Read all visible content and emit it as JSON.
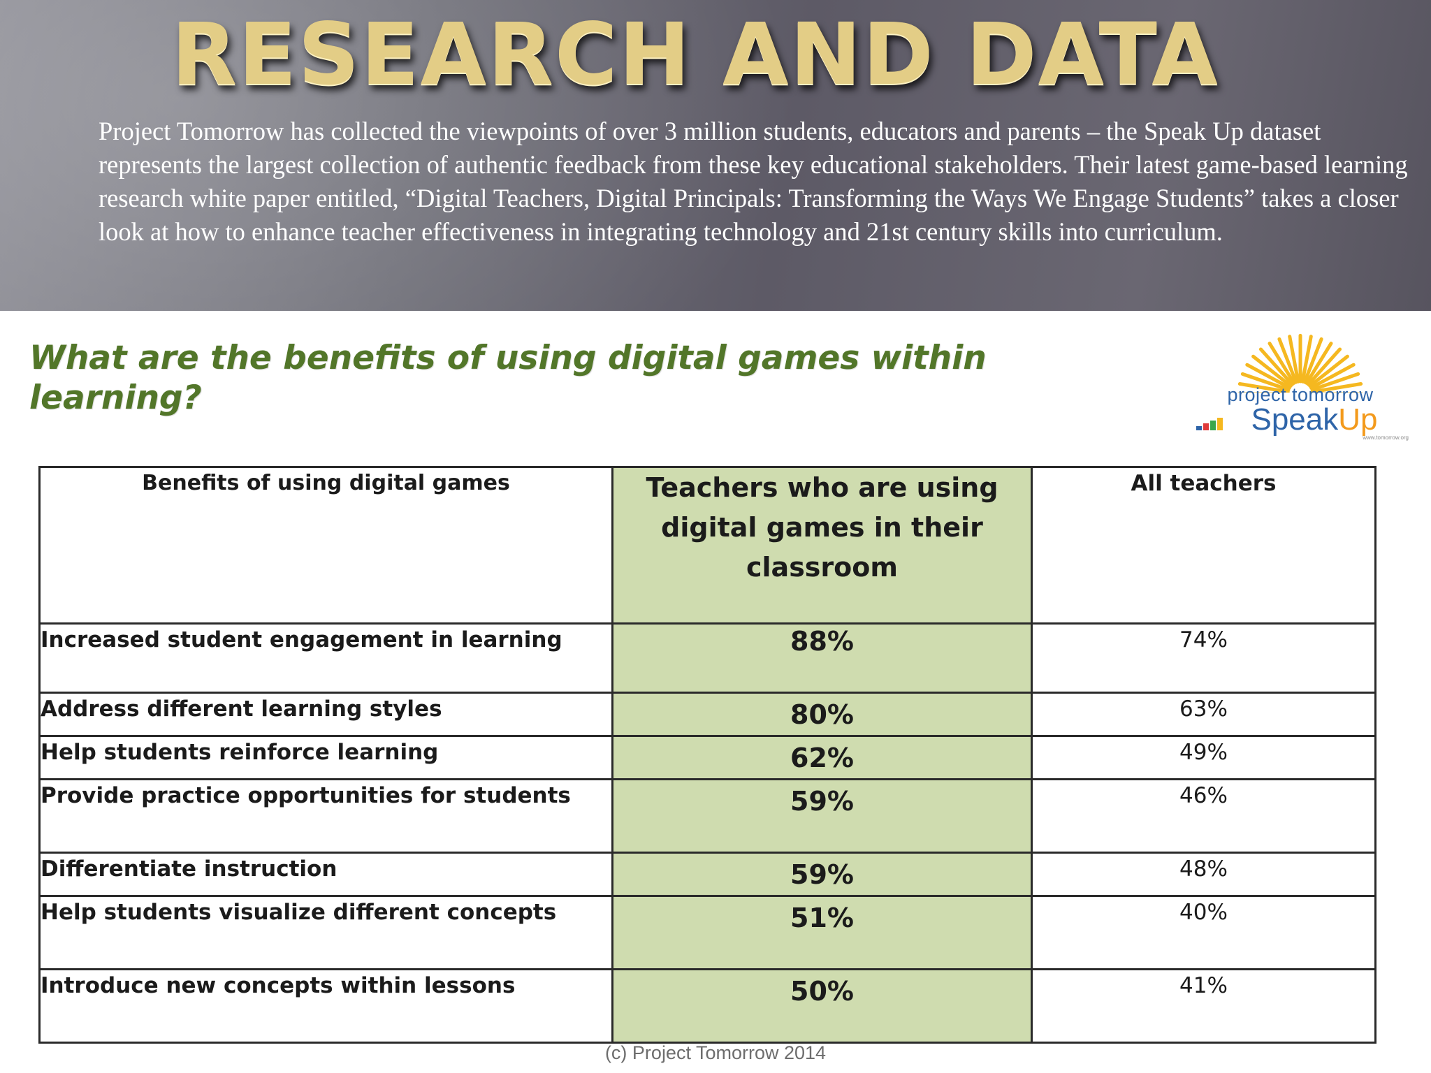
{
  "slide": {
    "title": "RESEARCH AND DATA",
    "intro": "Project Tomorrow has collected the viewpoints of over 3 million students, educators and parents – the Speak Up dataset represents the largest collection of authentic feedback from these key educational stakeholders.  Their latest game-based learning research white paper entitled, “Digital Teachers, Digital Principals: Transforming the Ways We Engage Students” takes a closer look at how to enhance teacher effectiveness in integrating technology and 21st century skills into curriculum."
  },
  "figure": {
    "question": "What are the benefits of using digital games within learning?",
    "logo": {
      "name": "project tomorrow",
      "word_main": "Speak",
      "word_accent": "Up",
      "url": "www.tomorrow.org",
      "icon": "sunburst-icon",
      "accent_colors": [
        "#f5b820",
        "#2e64a8",
        "#e03a3a",
        "#3aa64a"
      ]
    },
    "table": {
      "headers": {
        "benefit": "Benefits of using digital games",
        "games": "Teachers who are using digital games in their classroom",
        "all": "All teachers"
      },
      "rows": [
        {
          "benefit": "Increased student engagement in learning",
          "games": "88%",
          "all": "74%"
        },
        {
          "benefit": "Address different learning styles",
          "games": "80%",
          "all": "63%"
        },
        {
          "benefit": "Help students reinforce learning",
          "games": "62%",
          "all": "49%"
        },
        {
          "benefit": "Provide practice opportunities for students",
          "games": "59%",
          "all": "46%"
        },
        {
          "benefit": "Differentiate instruction",
          "games": "59%",
          "all": "48%"
        },
        {
          "benefit": "Help students visualize different concepts",
          "games": "51%",
          "all": "40%"
        },
        {
          "benefit": "Introduce new concepts within lessons",
          "games": "50%",
          "all": "41%"
        }
      ]
    },
    "copyright": "(c) Project Tomorrow 2014"
  }
}
